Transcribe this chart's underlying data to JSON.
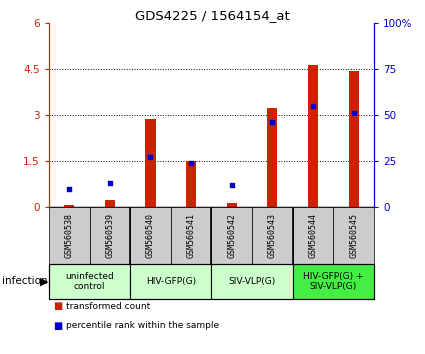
{
  "title": "GDS4225 / 1564154_at",
  "samples": [
    "GSM560538",
    "GSM560539",
    "GSM560540",
    "GSM560541",
    "GSM560542",
    "GSM560543",
    "GSM560544",
    "GSM560545"
  ],
  "transformed_counts": [
    0.07,
    0.22,
    2.88,
    1.5,
    0.12,
    3.22,
    4.63,
    4.45
  ],
  "percentile_ranks": [
    10,
    13,
    27,
    24,
    12,
    46,
    55,
    51
  ],
  "ylim_left": [
    0,
    6
  ],
  "ylim_right": [
    0,
    100
  ],
  "yticks_left": [
    0,
    1.5,
    3.0,
    4.5,
    6
  ],
  "yticks_right": [
    0,
    25,
    50,
    75,
    100
  ],
  "ytick_labels_left": [
    "0",
    "1.5",
    "3",
    "4.5",
    "6"
  ],
  "ytick_labels_right": [
    "0",
    "25",
    "50",
    "75",
    "100%"
  ],
  "bar_color": "#cc2200",
  "dot_color": "#0000cc",
  "groups": [
    {
      "label": "uninfected\ncontrol",
      "start": 0,
      "end": 2,
      "color": "#ccffcc"
    },
    {
      "label": "HIV-GFP(G)",
      "start": 2,
      "end": 4,
      "color": "#ccffcc"
    },
    {
      "label": "SIV-VLP(G)",
      "start": 4,
      "end": 6,
      "color": "#ccffcc"
    },
    {
      "label": "HIV-GFP(G) +\nSIV-VLP(G)",
      "start": 6,
      "end": 8,
      "color": "#44ee44"
    }
  ],
  "infection_label": "infection",
  "legend_items": [
    {
      "color": "#cc2200",
      "label": "transformed count"
    },
    {
      "color": "#0000cc",
      "label": "percentile rank within the sample"
    }
  ],
  "sample_box_color": "#cccccc",
  "dotted_line_color": "#555555",
  "bar_width": 0.25
}
